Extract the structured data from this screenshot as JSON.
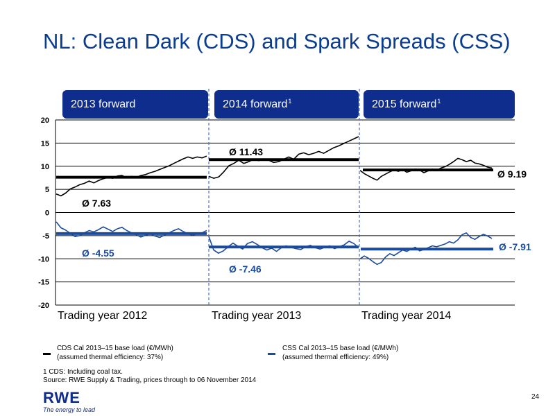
{
  "page": {
    "title": "NL: Clean Dark (CDS) and Spark Spreads (CSS)",
    "page_number": "24"
  },
  "tabs": [
    {
      "label": "2013 forward",
      "sup": ""
    },
    {
      "label": "2014 forward",
      "sup": "1"
    },
    {
      "label": "2015 forward",
      "sup": "1"
    }
  ],
  "legend": {
    "cds": {
      "line1": "CDS Cal 2013–15 base load (€/MWh)",
      "line2": "(assumed thermal efficiency: 37%)"
    },
    "css": {
      "line1": "CSS Cal 2013–15 base load (€/MWh)",
      "line2": "(assumed thermal efficiency: 49%)"
    }
  },
  "footnotes": {
    "line1": "1 CDS: Including coal tax.",
    "line2": "Source: RWE Supply & Trading, prices through to 06 November 2014"
  },
  "logo": {
    "word": "RWE",
    "tagline": "The energy to lead"
  },
  "colors": {
    "cds": "#000000",
    "css": "#1a4b9c",
    "tab": "#0e2d8c",
    "title": "#0a3d8f"
  },
  "chart_data": {
    "type": "line",
    "title": "",
    "xlabel": "",
    "ylabel": "",
    "ylim": [
      -20,
      20
    ],
    "yticks": [
      20,
      15,
      10,
      5,
      0,
      -5,
      -10,
      -15,
      -20
    ],
    "periods": [
      "Trading year 2012",
      "Trading year 2013",
      "Trading year 2014"
    ],
    "grid": true,
    "series": [
      {
        "name": "CDS Cal 2013–15 base load (€/MWh)",
        "color": "#000000",
        "segments": [
          {
            "values": [
              4,
              3.6,
              4.2,
              5.1,
              5.5,
              6.0,
              6.3,
              6.8,
              6.4,
              6.9,
              7.3,
              7.6,
              7.4,
              7.9,
              8.0,
              7.5,
              7.8,
              7.6,
              8.0,
              8.2,
              8.6,
              8.9,
              9.3,
              9.7,
              10.1,
              10.6,
              11.1,
              11.6,
              12.0,
              11.7,
              12.0,
              11.8,
              12.2
            ]
          },
          {
            "values": [
              7.8,
              7.4,
              7.7,
              8.8,
              10.1,
              10.6,
              11.3,
              10.6,
              11.0,
              11.5,
              11.2,
              11.6,
              11.3,
              10.8,
              11.0,
              11.5,
              12.0,
              11.5,
              12.6,
              12.9,
              12.5,
              12.8,
              13.2,
              12.8,
              13.4,
              14.0,
              14.4,
              14.9,
              15.4,
              15.9,
              16.4
            ]
          },
          {
            "values": [
              9.1,
              8.4,
              7.9,
              7.4,
              7.0,
              7.8,
              8.3,
              8.8,
              9.2,
              8.9,
              9.3,
              8.7,
              9.0,
              9.4,
              9.2,
              8.6,
              9.0,
              9.4,
              9.1,
              9.6,
              9.9,
              10.4,
              11.0,
              11.7,
              11.4,
              11.0,
              11.3,
              10.7,
              10.5,
              10.2,
              9.8,
              9.6
            ]
          }
        ]
      },
      {
        "name": "CSS Cal 2013–15 base load (€/MWh)",
        "color": "#1a4b9c",
        "segments": [
          {
            "values": [
              -2.0,
              -3.3,
              -3.8,
              -4.5,
              -5.2,
              -5.0,
              -4.4,
              -3.9,
              -4.2,
              -3.7,
              -3.1,
              -3.6,
              -4.1,
              -3.5,
              -3.2,
              -3.9,
              -4.4,
              -4.8,
              -5.3,
              -4.9,
              -4.6,
              -5.1,
              -5.4,
              -4.9,
              -4.4,
              -3.9,
              -3.5,
              -4.1,
              -4.6,
              -4.9,
              -4.6,
              -4.4,
              -3.9
            ]
          },
          {
            "values": [
              -5.2,
              -8.1,
              -8.8,
              -8.3,
              -7.4,
              -6.6,
              -7.3,
              -7.9,
              -6.7,
              -6.3,
              -6.9,
              -7.6,
              -8.1,
              -7.7,
              -8.4,
              -7.6,
              -7.2,
              -7.5,
              -7.8,
              -8.0,
              -7.4,
              -7.1,
              -7.6,
              -7.9,
              -7.5,
              -7.2,
              -7.8,
              -7.4,
              -7.0,
              -6.2,
              -6.7,
              -7.6
            ]
          },
          {
            "values": [
              -10.0,
              -9.4,
              -9.9,
              -10.6,
              -11.2,
              -10.8,
              -9.6,
              -8.9,
              -9.3,
              -8.7,
              -8.1,
              -8.4,
              -7.9,
              -7.5,
              -8.3,
              -8.0,
              -7.6,
              -7.2,
              -7.4,
              -7.1,
              -6.8,
              -6.3,
              -6.6,
              -5.9,
              -4.8,
              -4.4,
              -5.4,
              -5.8,
              -5.2,
              -4.7,
              -5.1,
              -5.6
            ]
          }
        ]
      }
    ],
    "averages": [
      {
        "series": "CDS",
        "period": 0,
        "value": 7.63,
        "label": "Ø 7.63"
      },
      {
        "series": "CDS",
        "period": 1,
        "value": 11.43,
        "label": "Ø 11.43"
      },
      {
        "series": "CDS",
        "period": 2,
        "value": 9.19,
        "label": "Ø 9.19"
      },
      {
        "series": "CSS",
        "period": 0,
        "value": -4.55,
        "label": "Ø -4.55"
      },
      {
        "series": "CSS",
        "period": 1,
        "value": -7.46,
        "label": "Ø -7.46"
      },
      {
        "series": "CSS",
        "period": 2,
        "value": -7.91,
        "label": "Ø -7.91"
      }
    ]
  }
}
